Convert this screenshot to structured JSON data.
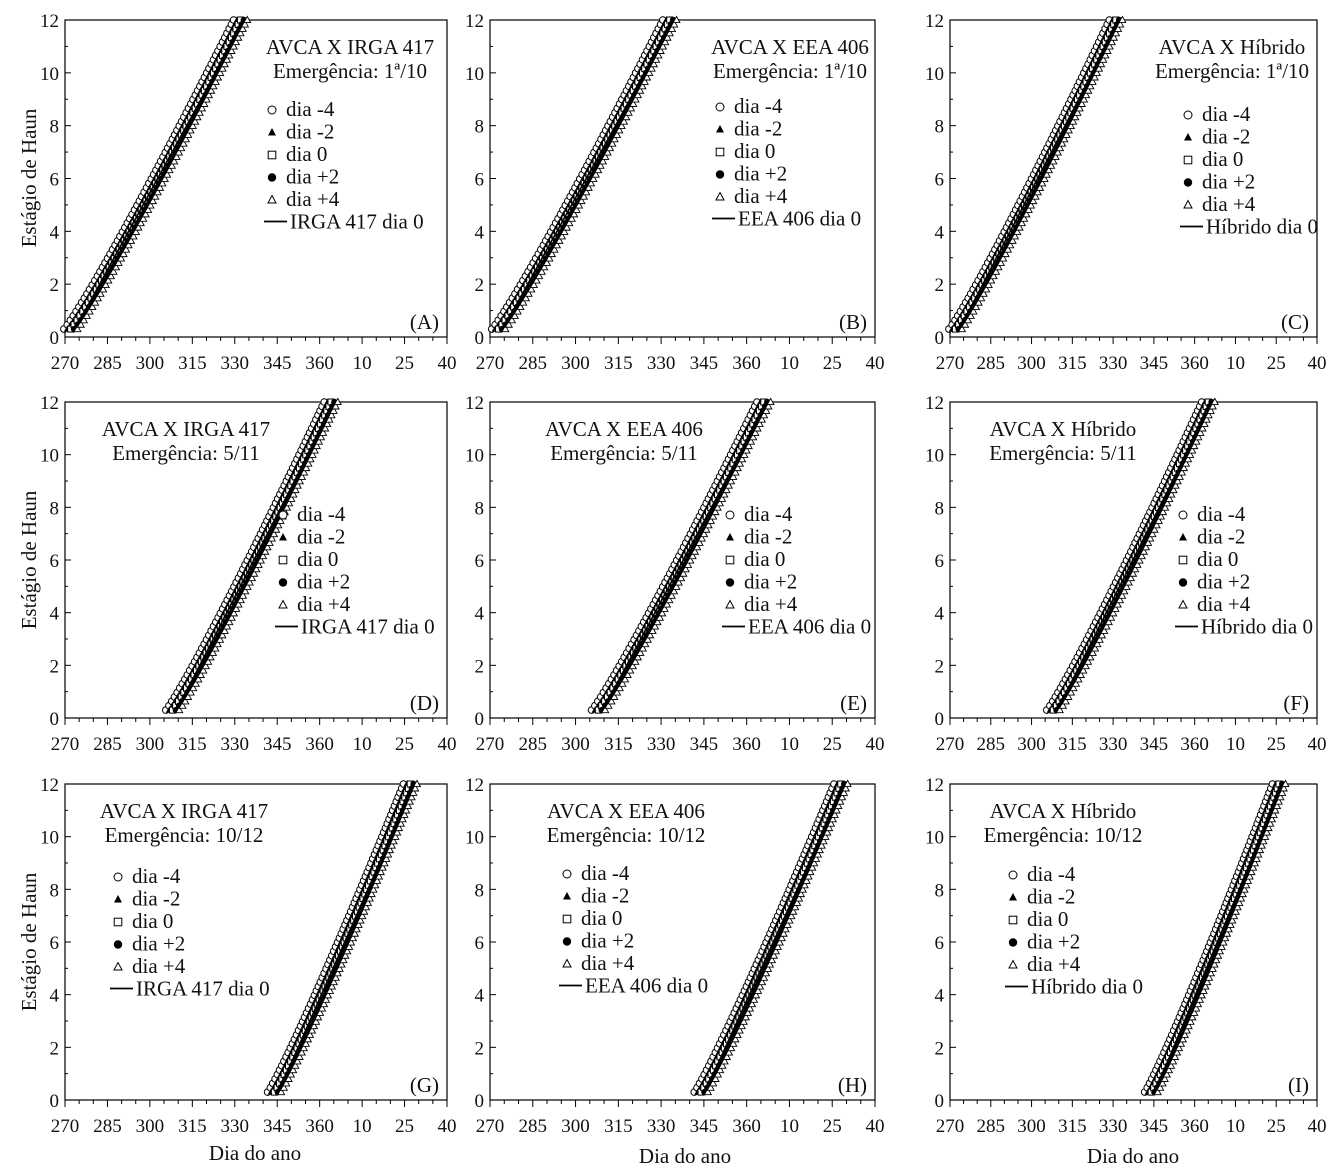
{
  "axis_labels": {
    "ylabel": "Estágio de Haun",
    "xlabel": "Dia do ano"
  },
  "x_tick_labels": [
    "270",
    "285",
    "300",
    "315",
    "330",
    "345",
    "360",
    "10",
    "25",
    "40"
  ],
  "y_tick_labels": [
    "0",
    "2",
    "4",
    "6",
    "8",
    "10",
    "12"
  ],
  "legend_items": [
    "dia -4",
    "dia -2",
    "dia 0",
    "dia +2",
    "dia +4"
  ],
  "chart_data": [
    {
      "panel": "A",
      "type": "scatter",
      "title": "AVCA X IRGA 417",
      "subtitle": "Emergência: 1ª/10",
      "line_label": "IRGA 417 dia 0",
      "start": 272,
      "end": 332,
      "xlim": [
        270,
        405
      ],
      "ylim": [
        0,
        12
      ]
    },
    {
      "panel": "B",
      "type": "scatter",
      "title": "AVCA X EEA 406",
      "subtitle": "Emergência: 1ª/10",
      "line_label": "EEA 406 dia 0",
      "start": 273,
      "end": 333,
      "xlim": [
        270,
        405
      ],
      "ylim": [
        0,
        12
      ]
    },
    {
      "panel": "C",
      "type": "scatter",
      "title": "AVCA X Híbrido",
      "subtitle": "Emergência: 1ª/10",
      "line_label": "Híbrido dia 0",
      "start": 272,
      "end": 331,
      "xlim": [
        270,
        405
      ],
      "ylim": [
        0,
        12
      ]
    },
    {
      "panel": "D",
      "type": "scatter",
      "title": "AVCA X IRGA 417",
      "subtitle": "Emergência: 5/11",
      "line_label": "IRGA 417 dia 0",
      "start": 308,
      "end": 364,
      "xlim": [
        270,
        405
      ],
      "ylim": [
        0,
        12
      ]
    },
    {
      "panel": "E",
      "type": "scatter",
      "title": "AVCA X EEA 406",
      "subtitle": "Emergência: 5/11",
      "line_label": "EEA 406 dia 0",
      "start": 308,
      "end": 366,
      "xlim": [
        270,
        405
      ],
      "ylim": [
        0,
        12
      ]
    },
    {
      "panel": "F",
      "type": "scatter",
      "title": "AVCA X Híbrido",
      "subtitle": "Emergência: 5/11",
      "line_label": "Híbrido dia 0",
      "start": 308,
      "end": 365,
      "xlim": [
        270,
        405
      ],
      "ylim": [
        0,
        12
      ]
    },
    {
      "panel": "G",
      "type": "scatter",
      "title": "AVCA X IRGA 417",
      "subtitle": "Emergência: 10/12",
      "line_label": "IRGA 417 dia 0",
      "start": 344,
      "end": 392,
      "xlim": [
        270,
        405
      ],
      "ylim": [
        0,
        12
      ]
    },
    {
      "panel": "H",
      "type": "scatter",
      "title": "AVCA X EEA 406",
      "subtitle": "Emergência: 10/12",
      "line_label": "EEA 406 dia 0",
      "start": 344,
      "end": 393,
      "xlim": [
        270,
        405
      ],
      "ylim": [
        0,
        12
      ]
    },
    {
      "panel": "I",
      "type": "scatter",
      "title": "AVCA X Híbrido",
      "subtitle": "Emergência: 10/12",
      "line_label": "Híbrido dia 0",
      "start": 344,
      "end": 391,
      "xlim": [
        270,
        405
      ],
      "ylim": [
        0,
        12
      ]
    }
  ]
}
